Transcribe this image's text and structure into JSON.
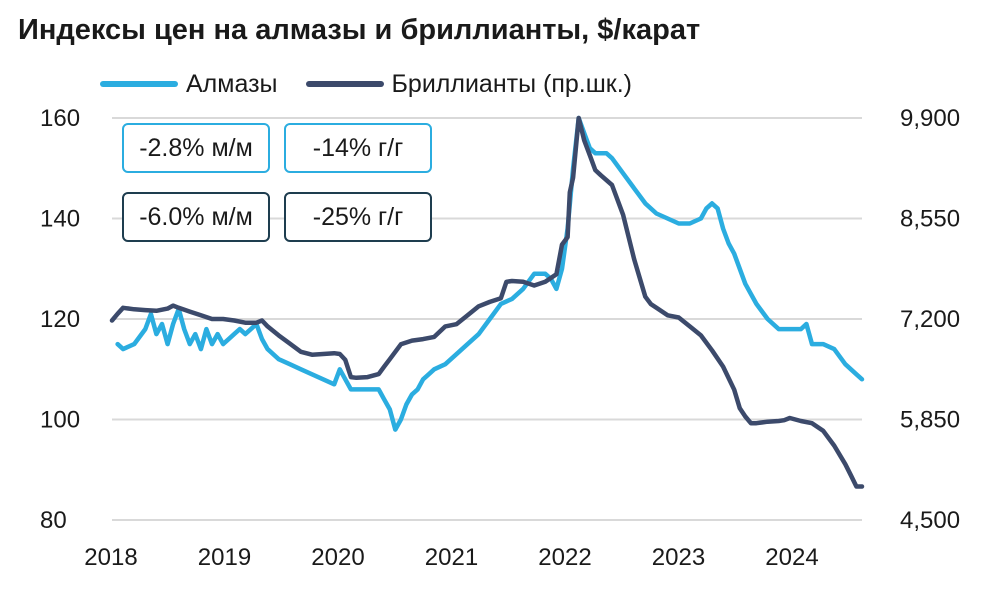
{
  "chart_data": {
    "type": "line",
    "title": "Индексы цен на алмазы и бриллианты, $/карат",
    "x_ticks": [
      "2018",
      "2019",
      "2020",
      "2021",
      "2022",
      "2023",
      "2024"
    ],
    "y_left": {
      "ticks": [
        "80",
        "100",
        "120",
        "140",
        "160"
      ],
      "range": [
        80,
        160
      ]
    },
    "y_right": {
      "ticks": [
        "4,500",
        "5,850",
        "7,200",
        "8,550",
        "9,900"
      ],
      "range": [
        4500,
        9900
      ]
    },
    "grid": true,
    "legend_position": "top",
    "series": [
      {
        "name": "Алмазы",
        "axis": "left",
        "color": "#2bade0",
        "points": [
          [
            2018.05,
            115
          ],
          [
            2018.1,
            114
          ],
          [
            2018.2,
            115
          ],
          [
            2018.3,
            118
          ],
          [
            2018.35,
            121
          ],
          [
            2018.4,
            117
          ],
          [
            2018.45,
            119
          ],
          [
            2018.5,
            115
          ],
          [
            2018.55,
            119
          ],
          [
            2018.6,
            122
          ],
          [
            2018.65,
            118
          ],
          [
            2018.7,
            115
          ],
          [
            2018.75,
            117
          ],
          [
            2018.8,
            114
          ],
          [
            2018.85,
            118
          ],
          [
            2018.9,
            115
          ],
          [
            2018.95,
            117
          ],
          [
            2019.0,
            115
          ],
          [
            2019.05,
            116
          ],
          [
            2019.1,
            117
          ],
          [
            2019.15,
            118
          ],
          [
            2019.2,
            117
          ],
          [
            2019.25,
            118
          ],
          [
            2019.3,
            119
          ],
          [
            2019.35,
            116
          ],
          [
            2019.4,
            114
          ],
          [
            2019.5,
            112
          ],
          [
            2019.6,
            111
          ],
          [
            2019.7,
            110
          ],
          [
            2019.8,
            109
          ],
          [
            2019.9,
            108
          ],
          [
            2020.0,
            107
          ],
          [
            2020.05,
            110
          ],
          [
            2020.1,
            108
          ],
          [
            2020.15,
            106
          ],
          [
            2020.2,
            106
          ],
          [
            2020.3,
            106
          ],
          [
            2020.35,
            106
          ],
          [
            2020.4,
            106
          ],
          [
            2020.45,
            104
          ],
          [
            2020.5,
            102
          ],
          [
            2020.55,
            98
          ],
          [
            2020.6,
            100
          ],
          [
            2020.65,
            103
          ],
          [
            2020.7,
            105
          ],
          [
            2020.75,
            106
          ],
          [
            2020.8,
            108
          ],
          [
            2020.85,
            109
          ],
          [
            2020.9,
            110
          ],
          [
            2021.0,
            111
          ],
          [
            2021.1,
            113
          ],
          [
            2021.2,
            115
          ],
          [
            2021.3,
            117
          ],
          [
            2021.4,
            120
          ],
          [
            2021.5,
            123
          ],
          [
            2021.6,
            124
          ],
          [
            2021.7,
            126
          ],
          [
            2021.8,
            129
          ],
          [
            2021.9,
            129
          ],
          [
            2021.95,
            128
          ],
          [
            2022.0,
            126
          ],
          [
            2022.05,
            130
          ],
          [
            2022.1,
            138
          ],
          [
            2022.15,
            150
          ],
          [
            2022.2,
            160
          ],
          [
            2022.25,
            157
          ],
          [
            2022.3,
            154
          ],
          [
            2022.35,
            153
          ],
          [
            2022.4,
            153
          ],
          [
            2022.45,
            153
          ],
          [
            2022.5,
            152
          ],
          [
            2022.6,
            149
          ],
          [
            2022.7,
            146
          ],
          [
            2022.8,
            143
          ],
          [
            2022.9,
            141
          ],
          [
            2023.0,
            140
          ],
          [
            2023.1,
            139
          ],
          [
            2023.2,
            139
          ],
          [
            2023.3,
            140
          ],
          [
            2023.35,
            142
          ],
          [
            2023.4,
            143
          ],
          [
            2023.45,
            142
          ],
          [
            2023.5,
            138
          ],
          [
            2023.55,
            135
          ],
          [
            2023.6,
            133
          ],
          [
            2023.7,
            127
          ],
          [
            2023.8,
            123
          ],
          [
            2023.9,
            120
          ],
          [
            2024.0,
            118
          ],
          [
            2024.1,
            118
          ],
          [
            2024.2,
            118
          ],
          [
            2024.25,
            119
          ],
          [
            2024.3,
            115
          ],
          [
            2024.4,
            115
          ],
          [
            2024.5,
            114
          ],
          [
            2024.6,
            111
          ],
          [
            2024.7,
            109
          ],
          [
            2024.75,
            108
          ]
        ]
      },
      {
        "name": "Бриллианты (пр.шк.)",
        "axis": "right",
        "color": "#3c4a6b",
        "points": [
          [
            2018.0,
            7180
          ],
          [
            2018.05,
            7270
          ],
          [
            2018.1,
            7350
          ],
          [
            2018.2,
            7330
          ],
          [
            2018.3,
            7320
          ],
          [
            2018.4,
            7310
          ],
          [
            2018.5,
            7340
          ],
          [
            2018.55,
            7380
          ],
          [
            2018.6,
            7350
          ],
          [
            2018.7,
            7300
          ],
          [
            2018.8,
            7250
          ],
          [
            2018.9,
            7200
          ],
          [
            2019.0,
            7200
          ],
          [
            2019.1,
            7180
          ],
          [
            2019.2,
            7150
          ],
          [
            2019.3,
            7150
          ],
          [
            2019.35,
            7180
          ],
          [
            2019.4,
            7100
          ],
          [
            2019.5,
            6980
          ],
          [
            2019.6,
            6870
          ],
          [
            2019.7,
            6760
          ],
          [
            2019.8,
            6720
          ],
          [
            2019.9,
            6730
          ],
          [
            2020.0,
            6740
          ],
          [
            2020.05,
            6730
          ],
          [
            2020.1,
            6650
          ],
          [
            2020.15,
            6420
          ],
          [
            2020.2,
            6410
          ],
          [
            2020.3,
            6420
          ],
          [
            2020.4,
            6460
          ],
          [
            2020.45,
            6560
          ],
          [
            2020.5,
            6660
          ],
          [
            2020.6,
            6860
          ],
          [
            2020.7,
            6910
          ],
          [
            2020.8,
            6930
          ],
          [
            2020.9,
            6960
          ],
          [
            2021.0,
            7100
          ],
          [
            2021.1,
            7130
          ],
          [
            2021.2,
            7250
          ],
          [
            2021.3,
            7370
          ],
          [
            2021.4,
            7430
          ],
          [
            2021.5,
            7480
          ],
          [
            2021.55,
            7700
          ],
          [
            2021.6,
            7710
          ],
          [
            2021.7,
            7700
          ],
          [
            2021.8,
            7650
          ],
          [
            2021.9,
            7700
          ],
          [
            2022.0,
            7800
          ],
          [
            2022.05,
            8200
          ],
          [
            2022.1,
            8300
          ],
          [
            2022.12,
            8900
          ],
          [
            2022.15,
            9100
          ],
          [
            2022.2,
            9900
          ],
          [
            2022.25,
            9600
          ],
          [
            2022.3,
            9400
          ],
          [
            2022.35,
            9200
          ],
          [
            2022.4,
            9130
          ],
          [
            2022.5,
            9000
          ],
          [
            2022.6,
            8600
          ],
          [
            2022.7,
            8000
          ],
          [
            2022.8,
            7500
          ],
          [
            2022.85,
            7400
          ],
          [
            2022.9,
            7350
          ],
          [
            2023.0,
            7250
          ],
          [
            2023.1,
            7220
          ],
          [
            2023.2,
            7100
          ],
          [
            2023.3,
            6980
          ],
          [
            2023.4,
            6780
          ],
          [
            2023.5,
            6560
          ],
          [
            2023.6,
            6250
          ],
          [
            2023.65,
            6000
          ],
          [
            2023.7,
            5890
          ],
          [
            2023.75,
            5800
          ],
          [
            2023.8,
            5800
          ],
          [
            2023.9,
            5820
          ],
          [
            2024.0,
            5830
          ],
          [
            2024.05,
            5840
          ],
          [
            2024.1,
            5870
          ],
          [
            2024.2,
            5830
          ],
          [
            2024.3,
            5800
          ],
          [
            2024.4,
            5700
          ],
          [
            2024.5,
            5500
          ],
          [
            2024.6,
            5250
          ],
          [
            2024.65,
            5100
          ],
          [
            2024.7,
            4950
          ],
          [
            2024.75,
            4950
          ]
        ]
      }
    ]
  },
  "badges": [
    {
      "text": "-2.8% м/м",
      "series": "Алмазы"
    },
    {
      "text": "-14% г/г",
      "series": "Алмазы"
    },
    {
      "text": "-6.0% м/м",
      "series": "Бриллианты (пр.шк.)"
    },
    {
      "text": "-25% г/г",
      "series": "Бриллианты (пр.шк.)"
    }
  ]
}
